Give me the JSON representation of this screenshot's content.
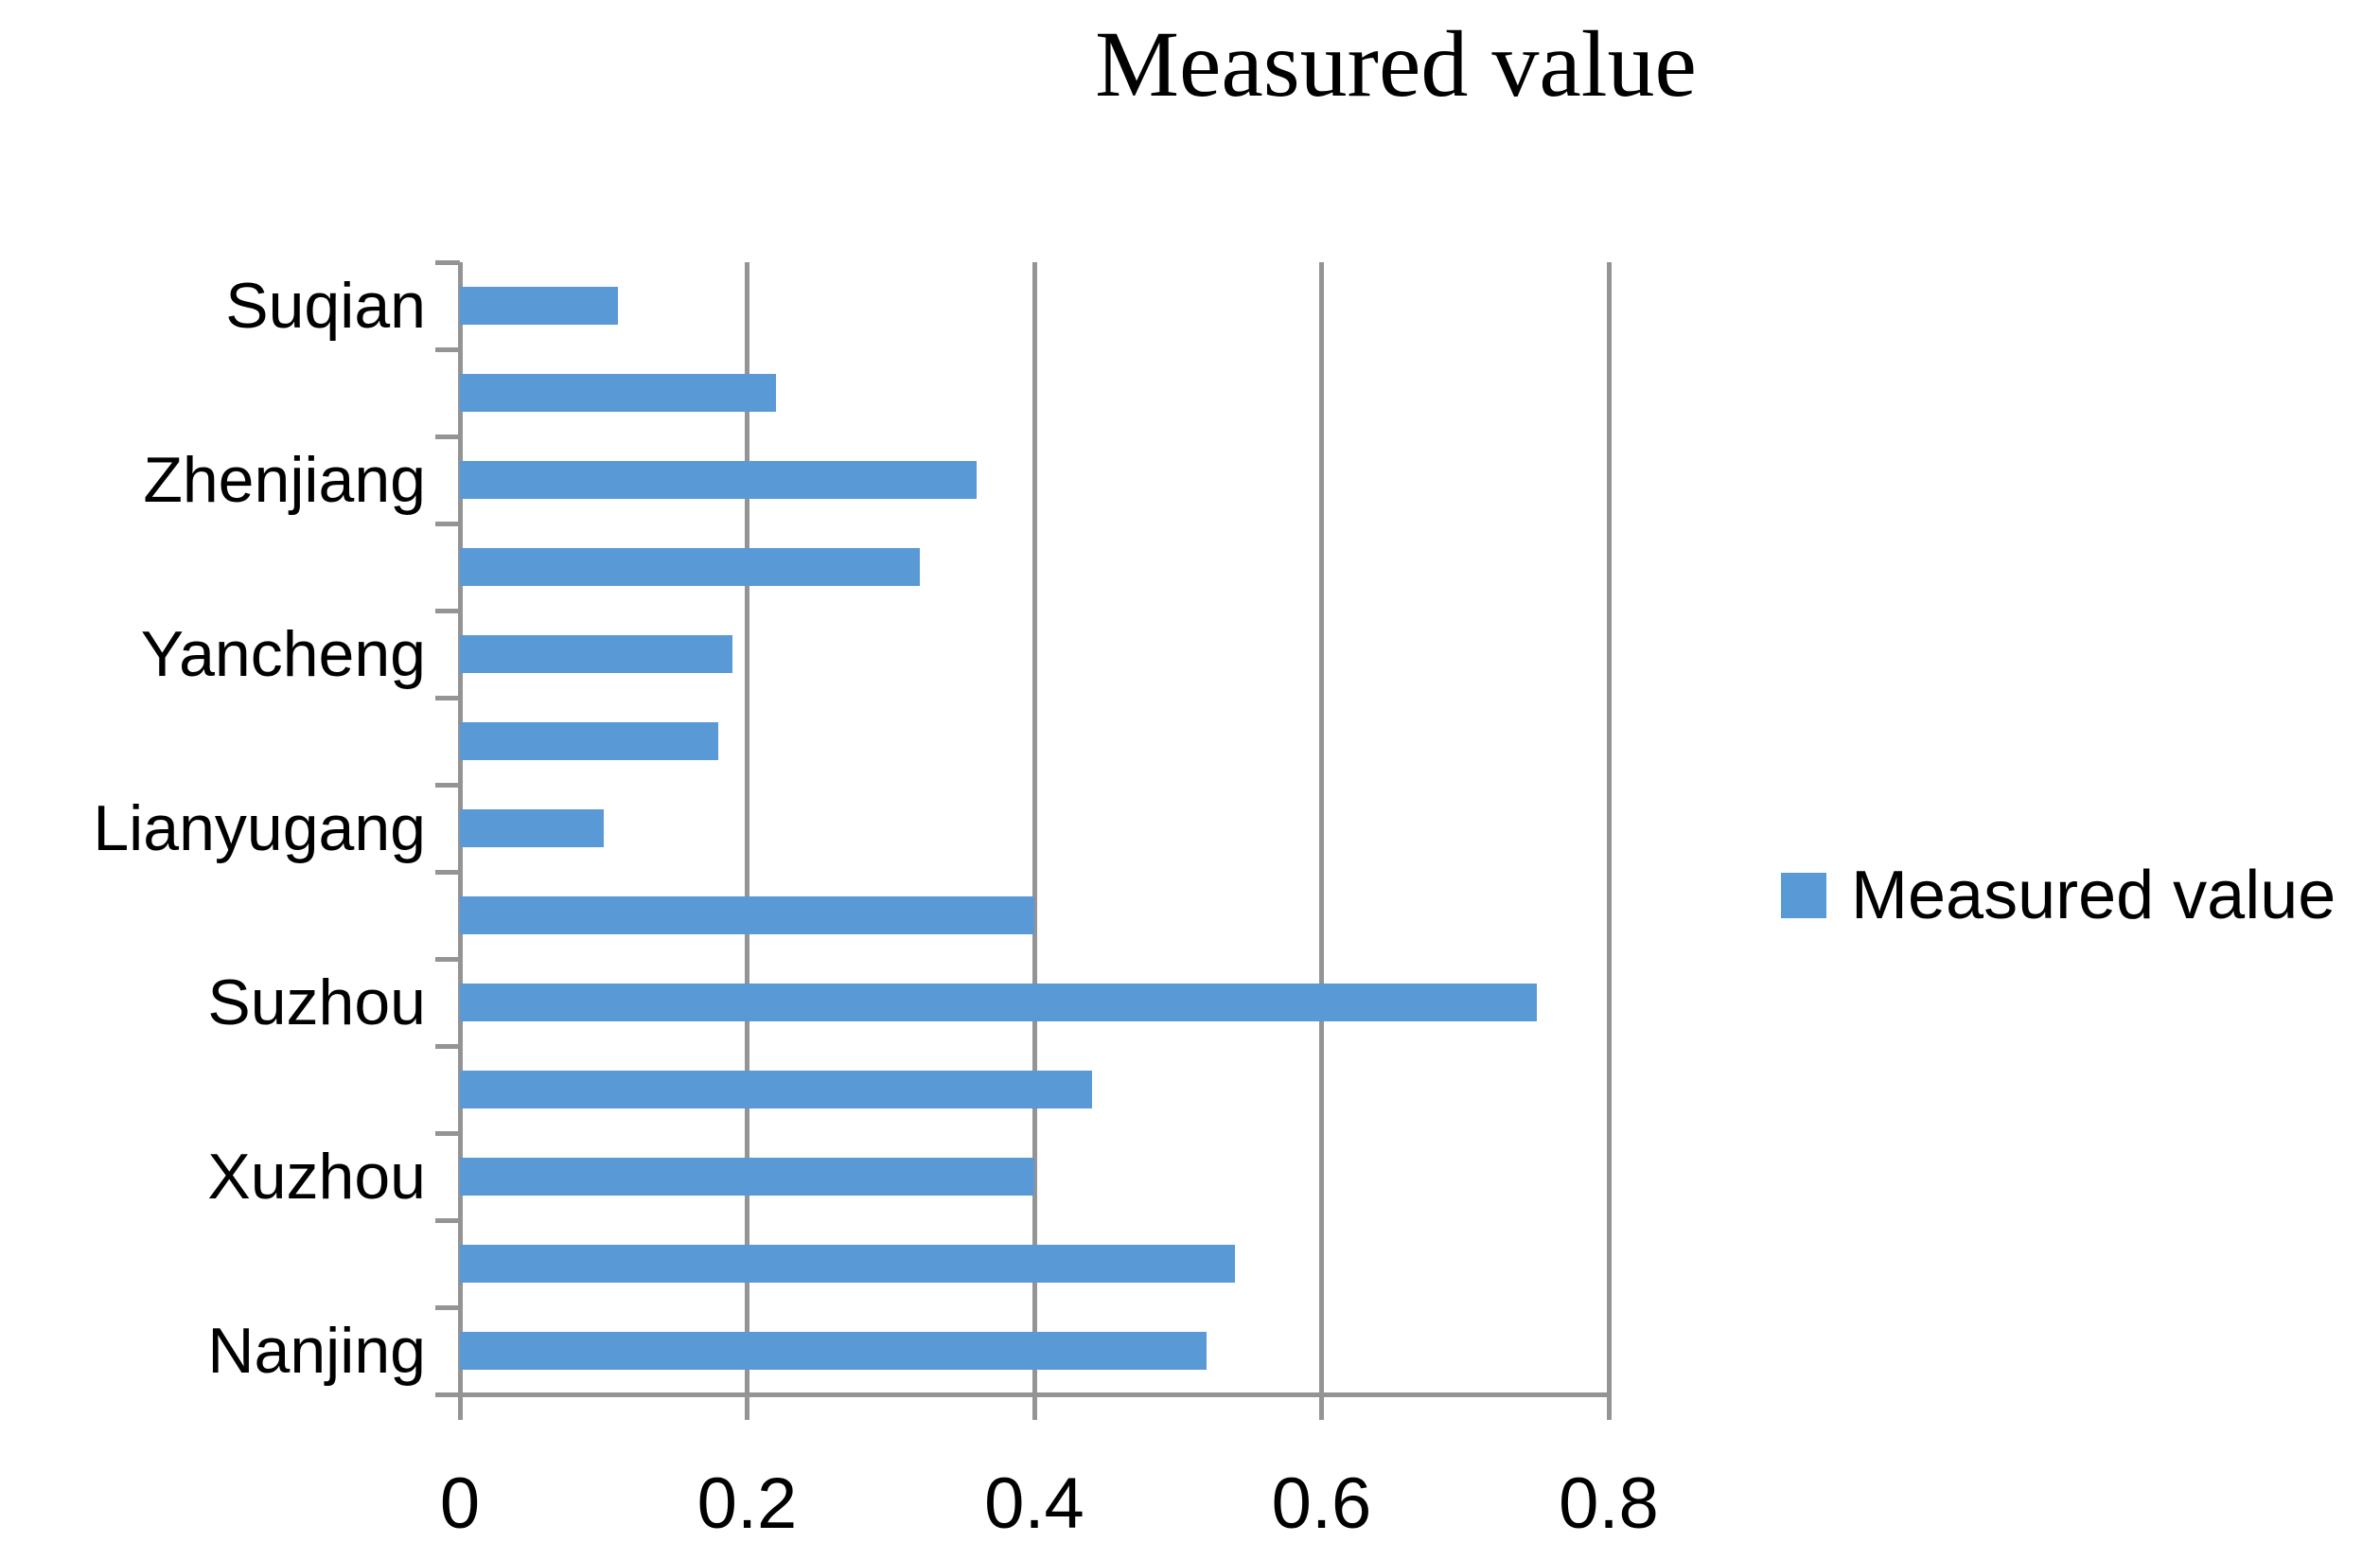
{
  "title": "Measured value",
  "legend": {
    "label": "Measured value"
  },
  "chart_data": {
    "type": "bar",
    "orientation": "horizontal",
    "title": "Measured value",
    "series_name": "Measured value",
    "categories": [
      "Suqian",
      "",
      "Zhenjiang",
      "",
      "Yancheng",
      "",
      "Lianyugang",
      "",
      "Suzhou",
      "",
      "Xuzhou",
      "",
      "Nanjing"
    ],
    "values": [
      0.11,
      0.22,
      0.36,
      0.32,
      0.19,
      0.18,
      0.1,
      0.4,
      0.75,
      0.44,
      0.4,
      0.54,
      0.52
    ],
    "xlim": [
      0,
      0.8
    ],
    "x_ticks": [
      0,
      0.2,
      0.4,
      0.6,
      0.8
    ],
    "x_tick_labels": [
      "0",
      "0.2",
      "0.4",
      "0.6",
      "0.8"
    ],
    "bar_color": "#5899D6",
    "axis_color": "#949494",
    "grid": true,
    "legend_position": "right",
    "category_labels_shown": "every-other"
  }
}
